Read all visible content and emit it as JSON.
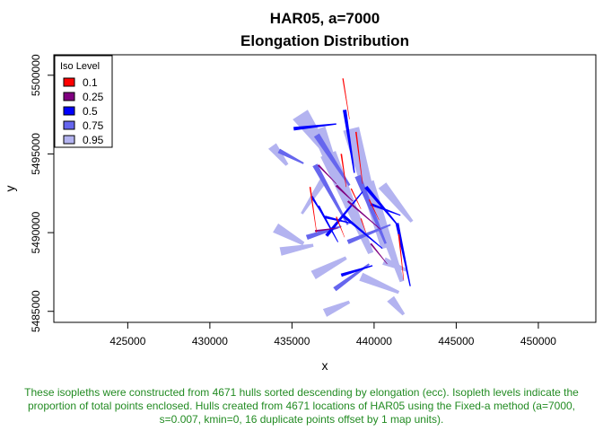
{
  "chart_data": {
    "type": "polygon-map",
    "title_line1": "HAR05, a=7000",
    "title_line2": "Elongation Distribution",
    "xlabel": "x",
    "ylabel": "y",
    "xlim": [
      420500,
      453500
    ],
    "ylim": [
      5484300,
      5501300
    ],
    "x_ticks": [
      425000,
      430000,
      435000,
      440000,
      445000,
      450000
    ],
    "y_ticks": [
      5485000,
      5490000,
      5495000,
      5500000
    ],
    "legend": {
      "title": "Iso Level",
      "placement": "top-left",
      "entries": [
        {
          "label": "0.1",
          "color": "#ff0000"
        },
        {
          "label": "0.25",
          "color": "#800080"
        },
        {
          "label": "0.5",
          "color": "#0000ff"
        },
        {
          "label": "0.75",
          "color": "#6666ee"
        },
        {
          "label": "0.95",
          "color": "#b3b3f0"
        }
      ]
    },
    "series": [
      {
        "name": "0.95",
        "color": "#b3b3f0",
        "strips": [
          [
            [
              435500,
              5497500
            ],
            [
              437200,
              5495000
            ],
            [
              1100
            ]
          ],
          [
            [
              436600,
              5496600
            ],
            [
              438400,
              5491600
            ],
            [
              900
            ]
          ],
          [
            [
              437200,
              5495000
            ],
            [
              439800,
              5488700
            ],
            [
              1000
            ]
          ],
          [
            [
              438600,
              5496600
            ],
            [
              440600,
              5489000
            ],
            [
              1000
            ]
          ],
          [
            [
              439600,
              5493200
            ],
            [
              441700,
              5486900
            ],
            [
              800
            ]
          ],
          [
            [
              433800,
              5495500
            ],
            [
              434700,
              5494300
            ],
            [
              600
            ]
          ],
          [
            [
              434000,
              5490300
            ],
            [
              435700,
              5489300
            ],
            [
              650
            ]
          ],
          [
            [
              434300,
              5488800
            ],
            [
              436300,
              5489200
            ],
            [
              550
            ]
          ],
          [
            [
              436300,
              5487300
            ],
            [
              438300,
              5488400
            ],
            [
              600
            ]
          ],
          [
            [
              439200,
              5487200
            ],
            [
              441500,
              5486200
            ],
            [
              550
            ]
          ],
          [
            [
              440500,
              5493000
            ],
            [
              442300,
              5490700
            ],
            [
              600
            ]
          ],
          [
            [
              441000,
              5485800
            ],
            [
              441800,
              5484800
            ],
            [
              550
            ]
          ],
          [
            [
              437000,
              5484900
            ],
            [
              438500,
              5485600
            ],
            [
              550
            ]
          ],
          [
            [
              436900,
              5493300
            ],
            [
              435600,
              5491200
            ],
            [
              450
            ]
          ],
          [
            [
              440600,
              5488200
            ],
            [
              442000,
              5487600
            ],
            [
              500
            ]
          ]
        ]
      },
      {
        "name": "0.75",
        "color": "#6666ee",
        "strips": [
          [
            [
              436500,
              5496200
            ],
            [
              438500,
              5493000
            ],
            [
              380
            ]
          ],
          [
            [
              436400,
              5494300
            ],
            [
              438400,
              5490500
            ],
            [
              330
            ]
          ],
          [
            [
              439000,
              5493600
            ],
            [
              440700,
              5489300
            ],
            [
              380
            ]
          ],
          [
            [
              434200,
              5495200
            ],
            [
              435700,
              5494400
            ],
            [
              300
            ]
          ],
          [
            [
              435900,
              5489700
            ],
            [
              438000,
              5490400
            ],
            [
              320
            ]
          ],
          [
            [
              438400,
              5489400
            ],
            [
              441000,
              5490500
            ],
            [
              280
            ]
          ],
          [
            [
              437600,
              5486400
            ],
            [
              439700,
              5488000
            ],
            [
              300
            ]
          ]
        ]
      },
      {
        "name": "0.5",
        "color": "#0000ff",
        "strips": [
          [
            [
              435100,
              5496600
            ],
            [
              437700,
              5496900
            ],
            [
              230
            ]
          ],
          [
            [
              438200,
              5497800
            ],
            [
              438800,
              5493800
            ],
            [
              220
            ]
          ],
          [
            [
              437100,
              5489800
            ],
            [
              439300,
              5492600
            ],
            [
              200
            ]
          ],
          [
            [
              439500,
              5492900
            ],
            [
              441500,
              5490400
            ],
            [
              230
            ]
          ],
          [
            [
              438100,
              5491100
            ],
            [
              440500,
              5489000
            ],
            [
              180
            ]
          ],
          [
            [
              438000,
              5487300
            ],
            [
              439900,
              5487900
            ],
            [
              210
            ]
          ],
          [
            [
              441400,
              5490600
            ],
            [
              442200,
              5486600
            ],
            [
              200
            ]
          ],
          [
            [
              437000,
              5491000
            ],
            [
              438600,
              5490600
            ],
            [
              170
            ]
          ],
          [
            [
              436200,
              5492300
            ],
            [
              436900,
              5491100
            ],
            [
              150
            ]
          ],
          [
            [
              439800,
              5491800
            ],
            [
              441600,
              5491100
            ],
            [
              170
            ]
          ],
          [
            [
              436600,
              5491700
            ],
            [
              437800,
              5489400
            ],
            [
              150
            ]
          ]
        ]
      },
      {
        "name": "0.25",
        "color": "#800080",
        "strips": [
          [
            [
              437700,
              5493000
            ],
            [
              438700,
              5492000
            ],
            [
              140
            ]
          ],
          [
            [
              438400,
              5492000
            ],
            [
              440400,
              5490200
            ],
            [
              120
            ]
          ],
          [
            [
              436400,
              5490100
            ],
            [
              437800,
              5490300
            ],
            [
              120
            ]
          ],
          [
            [
              439800,
              5489300
            ],
            [
              440800,
              5488000
            ],
            [
              110
            ]
          ],
          [
            [
              436600,
              5494300
            ],
            [
              437700,
              5493100
            ],
            [
              110
            ]
          ]
        ]
      },
      {
        "name": "0.1",
        "color": "#ff0000",
        "strips": [
          [
            [
              438100,
              5499800
            ],
            [
              438500,
              5497200
            ],
            [
              75
            ]
          ],
          [
            [
              438900,
              5496400
            ],
            [
              439300,
              5493100
            ],
            [
              85
            ]
          ],
          [
            [
              438000,
              5495000
            ],
            [
              438300,
              5492900
            ],
            [
              85
            ]
          ],
          [
            [
              436100,
              5492900
            ],
            [
              436500,
              5490000
            ],
            [
              85
            ]
          ],
          [
            [
              438600,
              5492800
            ],
            [
              439200,
              5491500
            ],
            [
              75
            ]
          ],
          [
            [
              439700,
              5492100
            ],
            [
              440300,
              5490800
            ],
            [
              70
            ]
          ],
          [
            [
              441500,
              5489900
            ],
            [
              441800,
              5487000
            ],
            [
              85
            ]
          ],
          [
            [
              437700,
              5491000
            ],
            [
              438200,
              5489700
            ],
            [
              70
            ]
          ],
          [
            [
              439200,
              5490900
            ],
            [
              439500,
              5490000
            ],
            [
              65
            ]
          ]
        ]
      }
    ]
  },
  "caption": "These isopleths were constructed from 4671 hulls sorted descending by elongation (ecc). Isopleth levels indicate the proportion of total points enclosed. Hulls created from 4671 locations of HAR05 using the Fixed-a method (a=7000, s=0.007, kmin=0, 16 duplicate points offset by 1 map units)."
}
